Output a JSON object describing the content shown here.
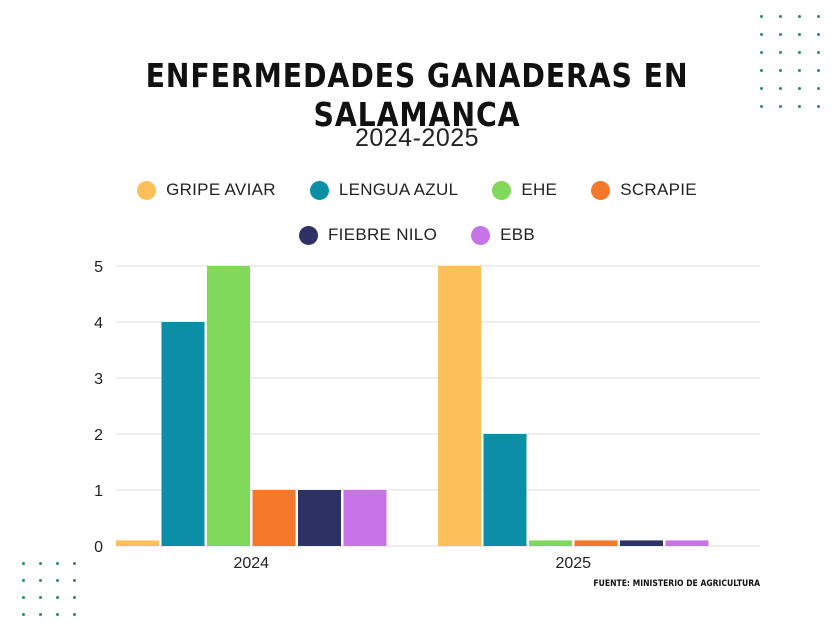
{
  "title": "ENFERMEDADES GANADERAS EN SALAMANCA",
  "subtitle": "2024-2025",
  "source": "FUENTE: MINISTERIO DE AGRICULTURA",
  "colors": {
    "accent_dots": "#2e8b6f",
    "grid": "#dddddd"
  },
  "chart_data": {
    "type": "bar",
    "categories": [
      "2024",
      "2025"
    ],
    "series": [
      {
        "name": "GRIPE AVIAR",
        "color": "#fcbf5a",
        "values": [
          0.1,
          5
        ]
      },
      {
        "name": "LENGUA AZUL",
        "color": "#0b8ea6",
        "values": [
          4,
          2
        ]
      },
      {
        "name": "EHE",
        "color": "#80d95a",
        "values": [
          5,
          0.1
        ]
      },
      {
        "name": "SCRAPIE",
        "color": "#f4772a",
        "values": [
          1,
          0.1
        ]
      },
      {
        "name": "FIEBRE NILO",
        "color": "#2d3164",
        "values": [
          1,
          0.1
        ]
      },
      {
        "name": "EBB",
        "color": "#c873e6",
        "values": [
          1,
          0.1
        ]
      }
    ],
    "yticks": [
      "0",
      "1",
      "2",
      "3",
      "4",
      "5"
    ],
    "ylim": [
      0,
      5
    ],
    "grid": true,
    "legend_position": "top"
  }
}
